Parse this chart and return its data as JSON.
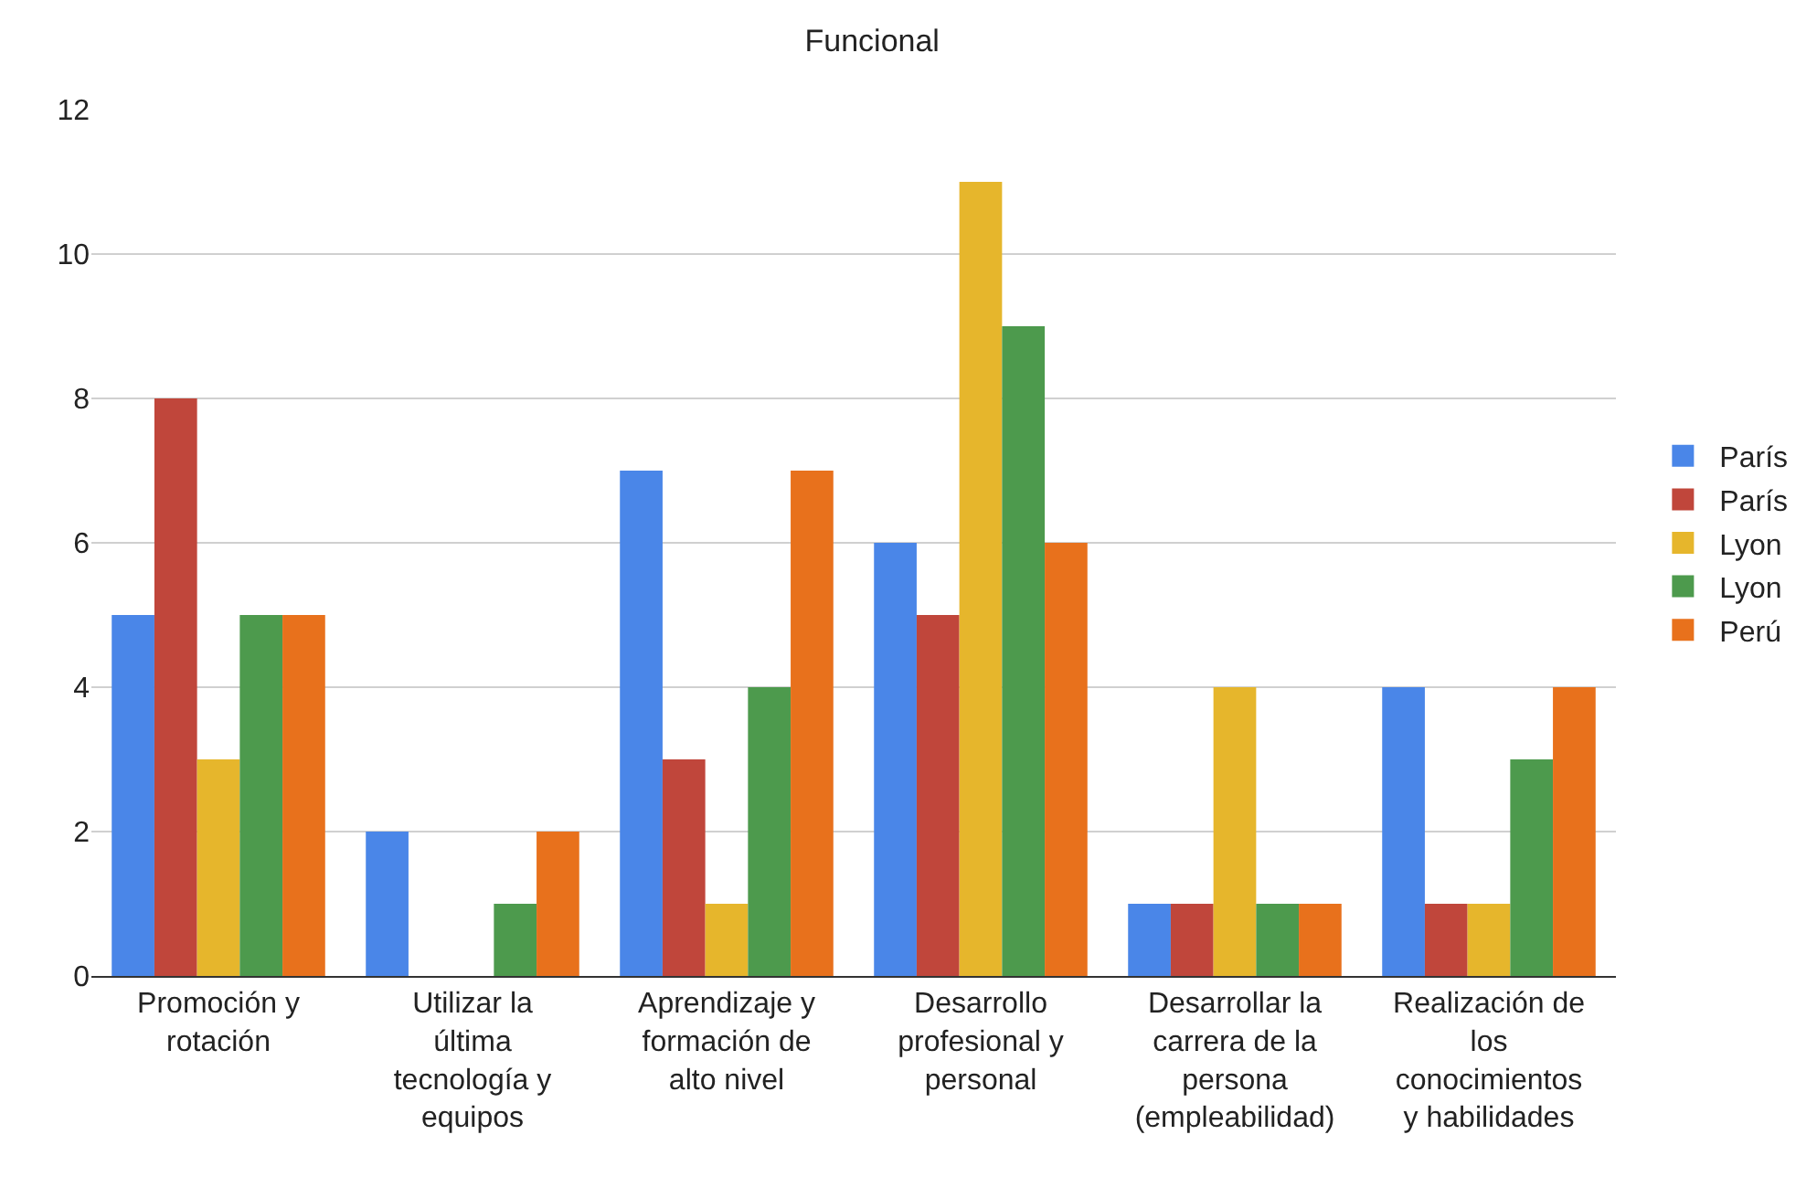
{
  "chart_data": {
    "type": "bar",
    "title": "Funcional",
    "categories": [
      "Promoción y rotación",
      "Utilizar la última tecnología y equipos",
      "Aprendizaje y formación de alto nivel",
      "Desarrollo profesional y personal",
      "Desarrollar la carrera de la persona (empleabilidad)",
      "Realización de los conocimientos y habilidades"
    ],
    "series": [
      {
        "name": "París",
        "color": "#4a86e8",
        "values": [
          5,
          2,
          7,
          6,
          1,
          4
        ]
      },
      {
        "name": "París",
        "color": "#c0463b",
        "values": [
          8,
          0,
          3,
          5,
          1,
          1
        ]
      },
      {
        "name": "Lyon",
        "color": "#e6b62c",
        "values": [
          3,
          0,
          1,
          11,
          4,
          1
        ]
      },
      {
        "name": "Lyon",
        "color": "#4d9a4d",
        "values": [
          5,
          1,
          4,
          9,
          1,
          3
        ]
      },
      {
        "name": "Perú",
        "color": "#e8711c",
        "values": [
          5,
          2,
          7,
          6,
          1,
          4
        ]
      }
    ],
    "ylim": [
      0,
      12
    ],
    "yticks": [
      0,
      2,
      4,
      6,
      8,
      10,
      12
    ],
    "grid": "y",
    "legend": "right"
  }
}
